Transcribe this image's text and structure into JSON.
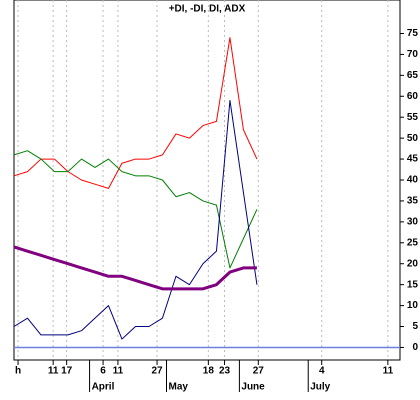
{
  "chart_data": {
    "type": "line",
    "title": "+DI, -DI, DI, ADX",
    "x": [
      0,
      1,
      2,
      3,
      4,
      5,
      6,
      7,
      8,
      9,
      10,
      11,
      12,
      13,
      14,
      15,
      16,
      17,
      18
    ],
    "series": [
      {
        "name": "+DI",
        "color": "#ff0000",
        "width": 1,
        "values": [
          41,
          42,
          45,
          45,
          42,
          40,
          39,
          38,
          44,
          45,
          45,
          46,
          51,
          50,
          53,
          54,
          74,
          52,
          45
        ]
      },
      {
        "name": "-DI",
        "color": "#008000",
        "width": 1,
        "values": [
          46,
          47,
          45,
          42,
          42,
          45,
          43,
          45,
          42,
          41,
          41,
          40,
          36,
          37,
          35,
          34,
          19,
          26,
          33
        ]
      },
      {
        "name": "DI",
        "color": "#000080",
        "width": 1,
        "values": [
          5,
          7,
          3,
          3,
          3,
          4,
          7,
          10,
          2,
          5,
          5,
          7,
          17,
          15,
          20,
          23,
          59,
          37,
          15
        ]
      },
      {
        "name": "ADX",
        "color": "#800080",
        "width": 3,
        "values": [
          24,
          23,
          22,
          21,
          20,
          19,
          18,
          17,
          17,
          16,
          15,
          14,
          14,
          14,
          14,
          15,
          18,
          19,
          19
        ]
      }
    ],
    "xlim": [
      0,
      28.6
    ],
    "xticks": [
      {
        "value": 0.3,
        "label": "h"
      },
      {
        "value": 2.9,
        "label": "11"
      },
      {
        "value": 3.9,
        "label": "17"
      },
      {
        "value": 6.6,
        "label": "6"
      },
      {
        "value": 7.7,
        "label": "11"
      },
      {
        "value": 10.6,
        "label": "27"
      },
      {
        "value": 14.4,
        "label": "18"
      },
      {
        "value": 15.6,
        "label": "23"
      },
      {
        "value": 18.1,
        "label": "27"
      },
      {
        "value": 22.8,
        "label": "4"
      },
      {
        "value": 27.7,
        "label": "11"
      }
    ],
    "month_ticks": [
      {
        "value": 5.6,
        "label": "April"
      },
      {
        "value": 11.3,
        "label": "May"
      },
      {
        "value": 16.7,
        "label": "June"
      },
      {
        "value": 21.8,
        "label": "July"
      }
    ],
    "ylim": [
      -3,
      83
    ],
    "yticks": [
      0,
      5,
      10,
      15,
      20,
      25,
      30,
      35,
      40,
      45,
      50,
      55,
      60,
      65,
      70,
      75
    ],
    "zero_line_color": "#6f7fdf",
    "grid": true
  }
}
